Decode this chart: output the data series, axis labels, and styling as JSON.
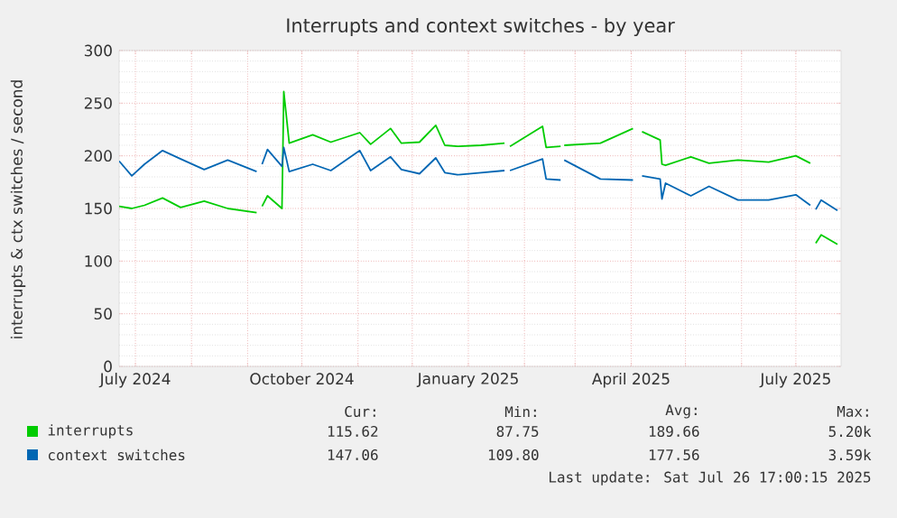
{
  "chart_data": {
    "type": "line",
    "title": "Interrupts and context switches - by year",
    "ylabel": "interrupts & ctx switches / second",
    "xlim": [
      "2024-06-22",
      "2025-07-26"
    ],
    "ylim": [
      0,
      300
    ],
    "yticks": [
      0,
      50,
      100,
      150,
      200,
      250,
      300
    ],
    "xticks": [
      {
        "value": "2024-07-01",
        "label": "July 2024"
      },
      {
        "value": "2024-08-01",
        "label": null
      },
      {
        "value": "2024-09-01",
        "label": null
      },
      {
        "value": "2024-10-01",
        "label": "October 2024"
      },
      {
        "value": "2024-11-01",
        "label": null
      },
      {
        "value": "2024-12-01",
        "label": null
      },
      {
        "value": "2025-01-01",
        "label": "January 2025"
      },
      {
        "value": "2025-02-01",
        "label": null
      },
      {
        "value": "2025-03-01",
        "label": null
      },
      {
        "value": "2025-04-01",
        "label": "April 2025"
      },
      {
        "value": "2025-05-01",
        "label": null
      },
      {
        "value": "2025-06-01",
        "label": null
      },
      {
        "value": "2025-07-01",
        "label": "July 2025"
      }
    ],
    "grid": true,
    "legend": "bottom",
    "line_style": "solid",
    "series": [
      {
        "name": "interrupts",
        "color": "#00cc00",
        "x": [
          "2024-06-22",
          "2024-06-29",
          "2024-07-06",
          "2024-07-16",
          "2024-07-26",
          "2024-08-08",
          "2024-08-21",
          "2024-09-06",
          "2024-09-07",
          "2024-09-09",
          "2024-09-12",
          "2024-09-20",
          "2024-09-21",
          "2024-09-24",
          "2024-10-07",
          "2024-10-17",
          "2024-11-02",
          "2024-11-08",
          "2024-11-19",
          "2024-11-25",
          "2024-12-05",
          "2024-12-14",
          "2024-12-19",
          "2024-12-26",
          "2025-01-08",
          "2025-01-21",
          "2025-01-22",
          "2025-01-24",
          "2025-02-11",
          "2025-02-13",
          "2025-02-21",
          "2025-02-22",
          "2025-02-23",
          "2025-03-15",
          "2025-04-02",
          "2025-04-03",
          "2025-04-07",
          "2025-04-17",
          "2025-04-18",
          "2025-04-20",
          "2025-05-04",
          "2025-05-14",
          "2025-05-30",
          "2025-06-16",
          "2025-07-01",
          "2025-07-09",
          "2025-07-10",
          "2025-07-12",
          "2025-07-15",
          "2025-07-24"
        ],
        "values": [
          152,
          150,
          153,
          160,
          151,
          157,
          150,
          146,
          null,
          152,
          162,
          150,
          261,
          212,
          220,
          213,
          222,
          211,
          226,
          212,
          213,
          229,
          210,
          209,
          210,
          212,
          null,
          209,
          228,
          208,
          209,
          null,
          210,
          212,
          226,
          null,
          223,
          215,
          192,
          191,
          199,
          193,
          196,
          194,
          200,
          193,
          null,
          117,
          125,
          116
        ]
      },
      {
        "name": "context switches",
        "color": "#0066b3",
        "x": [
          "2024-06-22",
          "2024-06-29",
          "2024-07-06",
          "2024-07-16",
          "2024-07-26",
          "2024-08-08",
          "2024-08-21",
          "2024-09-06",
          "2024-09-07",
          "2024-09-09",
          "2024-09-12",
          "2024-09-20",
          "2024-09-21",
          "2024-09-24",
          "2024-10-07",
          "2024-10-17",
          "2024-11-02",
          "2024-11-08",
          "2024-11-19",
          "2024-11-25",
          "2024-12-05",
          "2024-12-14",
          "2024-12-19",
          "2024-12-26",
          "2025-01-08",
          "2025-01-21",
          "2025-01-22",
          "2025-01-24",
          "2025-02-11",
          "2025-02-13",
          "2025-02-21",
          "2025-02-22",
          "2025-02-23",
          "2025-03-15",
          "2025-04-02",
          "2025-04-03",
          "2025-04-07",
          "2025-04-17",
          "2025-04-18",
          "2025-04-20",
          "2025-05-04",
          "2025-05-14",
          "2025-05-30",
          "2025-06-16",
          "2025-07-01",
          "2025-07-09",
          "2025-07-10",
          "2025-07-12",
          "2025-07-15",
          "2025-07-24"
        ],
        "values": [
          195,
          181,
          192,
          205,
          197,
          187,
          196,
          185,
          null,
          192,
          206,
          190,
          208,
          185,
          192,
          186,
          205,
          186,
          199,
          187,
          183,
          198,
          184,
          182,
          184,
          186,
          null,
          186,
          197,
          178,
          177,
          null,
          196,
          178,
          177,
          null,
          181,
          178,
          159,
          174,
          162,
          171,
          158,
          158,
          163,
          153,
          null,
          149,
          158,
          148
        ]
      }
    ],
    "annotations": [
      "Cur:",
      "Min:",
      "Avg:",
      "Max:",
      "115.62",
      "87.75",
      "189.66",
      "5.20k",
      "147.06",
      "109.80",
      "177.56",
      "3.59k",
      "Last update: Sat Jul 26 17:00:15 2025"
    ]
  }
}
